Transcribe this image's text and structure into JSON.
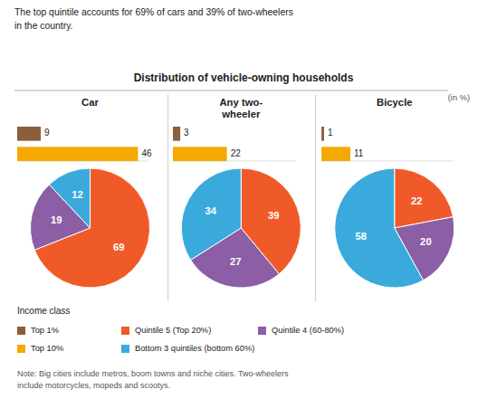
{
  "chart_data": [
    {
      "type": "bar",
      "title": "Distribution of vehicle-owning households",
      "subtitle": "The top quintile accounts for 69% of cars and 39% of two-wheelers\nin the country.",
      "annotations": [
        "(in %)",
        "Income class",
        "Note: Big cities include metros, boom towns and niche cities. Two-wheelers\ninclude motorcycles, mopeds and scootys."
      ],
      "categories": [
        "Car",
        "Any two-\nwheeler",
        "Bicycle"
      ],
      "series": [
        {
          "name": "Top 1%",
          "color": "#8B5E3C",
          "values": [
            9,
            3,
            1
          ]
        },
        {
          "name": "Top 10%",
          "color": "#F5A800",
          "values": [
            46,
            22,
            11
          ]
        }
      ],
      "orientation": "horizontal",
      "data_labels": true,
      "tick_labels": false,
      "legend": "bottom",
      "xlim": [
        0,
        50
      ]
    },
    {
      "type": "pie",
      "categories": [
        "Quintile 5 (Top 20%)",
        "Quintile 4 (60-80%)",
        "Bottom 3 quintiles (bottom 60%)"
      ],
      "colors": [
        "#F05A28",
        "#8B5EA6",
        "#3AAADC"
      ],
      "series": [
        {
          "values": [
            69,
            19,
            12
          ]
        },
        {
          "values": [
            39,
            27,
            34
          ]
        },
        {
          "values": [
            22,
            20,
            58
          ]
        }
      ],
      "data_labels": true,
      "legend": "bottom"
    }
  ]
}
